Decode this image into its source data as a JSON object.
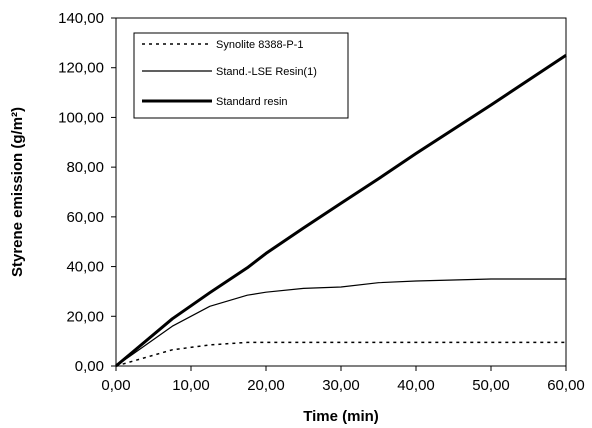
{
  "chart_data": {
    "type": "line",
    "title": "",
    "xlabel": "Time (min)",
    "ylabel": "Styrene emission (g/m²)",
    "xlim": [
      0,
      60
    ],
    "ylim": [
      0,
      140
    ],
    "x_ticks": [
      0,
      10,
      20,
      30,
      40,
      50,
      60
    ],
    "x_tick_labels": [
      "0,00",
      "10,00",
      "20,00",
      "30,00",
      "40,00",
      "50,00",
      "60,00"
    ],
    "y_ticks": [
      0,
      20,
      40,
      60,
      80,
      100,
      120,
      140
    ],
    "y_tick_labels": [
      "0,00",
      "20,00",
      "40,00",
      "60,00",
      "80,00",
      "100,00",
      "120,00",
      "140,00"
    ],
    "grid": false,
    "legend_position": "top-left",
    "series": [
      {
        "name": "Synolite 8388-P-1",
        "style": "dotted",
        "color": "#000000",
        "x": [
          0,
          7.5,
          12.5,
          17.5,
          20,
          25,
          30,
          35,
          40,
          50,
          60
        ],
        "y": [
          0,
          6.5,
          8.5,
          9.5,
          9.5,
          9.5,
          9.5,
          9.5,
          9.5,
          9.5,
          9.5
        ]
      },
      {
        "name": "Stand.-LSE Resin(1)",
        "style": "thin",
        "color": "#000000",
        "x": [
          0,
          7.5,
          12.5,
          17.5,
          20,
          25,
          30,
          35,
          40,
          50,
          60
        ],
        "y": [
          0,
          16,
          24,
          28.5,
          29.7,
          31.2,
          31.8,
          33.5,
          34.2,
          35,
          35
        ]
      },
      {
        "name": "Standard resin",
        "style": "thick",
        "color": "#000000",
        "x": [
          0,
          7.5,
          12.5,
          17.5,
          20,
          25,
          30,
          35,
          40,
          50,
          60
        ],
        "y": [
          0,
          19,
          29.5,
          39.5,
          45.3,
          55.5,
          65.5,
          75.3,
          85.5,
          105,
          125
        ]
      }
    ]
  }
}
